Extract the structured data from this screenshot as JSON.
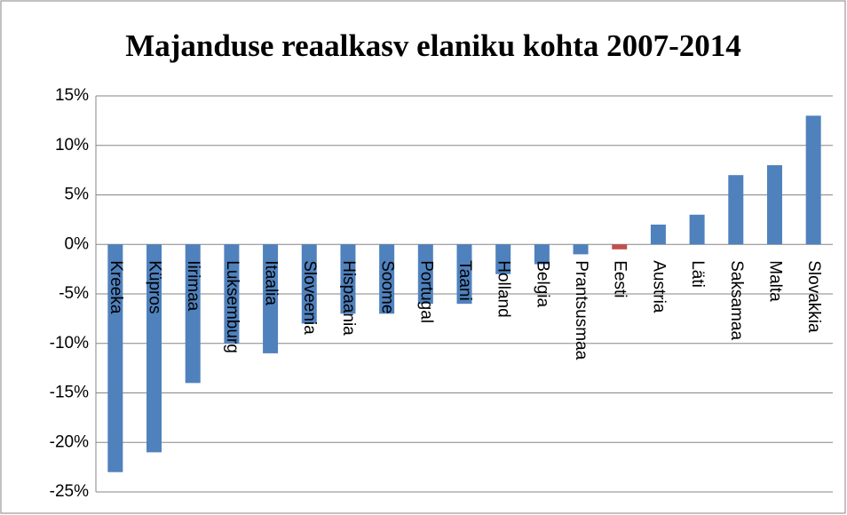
{
  "chart_data": {
    "type": "bar",
    "title": "Majanduse reaalkasv elaniku kohta 2007-2014",
    "categories": [
      "Kreeka",
      "Küpros",
      "Iirimaa",
      "Luksemburg",
      "Itaalia",
      "Sloveenia",
      "Hispaania",
      "Soome",
      "Portugal",
      "Taani",
      "Holland",
      "Belgia",
      "Prantsusmaa",
      "Eesti",
      "Austria",
      "Läti",
      "Saksamaa",
      "Malta",
      "Slovakkia"
    ],
    "values": [
      -23,
      -21,
      -14,
      -10,
      -11,
      -8,
      -7,
      -7,
      -6,
      -6,
      -3,
      -2,
      -1,
      -0.5,
      2,
      3,
      7,
      8,
      13
    ],
    "colors": [
      "#4f81bd",
      "#4f81bd",
      "#4f81bd",
      "#4f81bd",
      "#4f81bd",
      "#4f81bd",
      "#4f81bd",
      "#4f81bd",
      "#4f81bd",
      "#4f81bd",
      "#4f81bd",
      "#4f81bd",
      "#4f81bd",
      "#c0504d",
      "#4f81bd",
      "#4f81bd",
      "#4f81bd",
      "#4f81bd",
      "#4f81bd"
    ],
    "ylim": [
      -25,
      15
    ],
    "yticks": [
      {
        "value": -25,
        "label": "-25%"
      },
      {
        "value": -20,
        "label": "-20%"
      },
      {
        "value": -15,
        "label": "-15%"
      },
      {
        "value": -10,
        "label": "-10%"
      },
      {
        "value": -5,
        "label": "-5%"
      },
      {
        "value": 0,
        "label": "0%"
      },
      {
        "value": 5,
        "label": "5%"
      },
      {
        "value": 10,
        "label": "10%"
      },
      {
        "value": 15,
        "label": "15%"
      }
    ],
    "grid": true
  }
}
